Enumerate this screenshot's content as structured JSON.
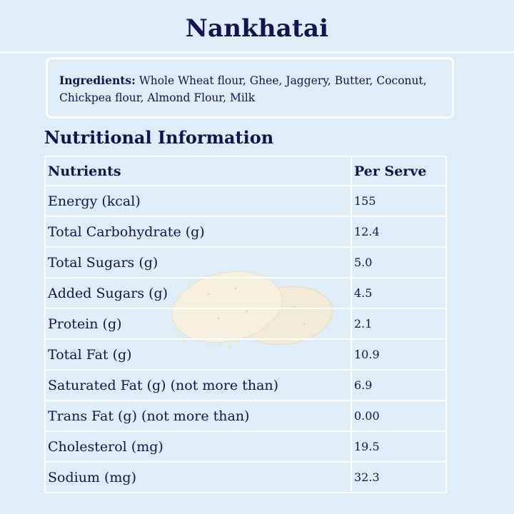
{
  "title": "Nankhatai",
  "ingredients": {
    "label": "Ingredients:",
    "text": " Whole Wheat flour, Ghee, Jaggery, Butter, Coconut, Chickpea flour, Almond Flour, Milk"
  },
  "nutrition": {
    "heading": "Nutritional Information",
    "columns": [
      "Nutrients",
      "Per Serve"
    ],
    "rows": [
      {
        "name": "Energy (kcal)",
        "value": "155"
      },
      {
        "name": "Total Carbohydrate (g)",
        "value": "12.4"
      },
      {
        "name": "Total Sugars (g)",
        "value": "5.0"
      },
      {
        "name": "Added Sugars (g)",
        "value": "4.5"
      },
      {
        "name": "Protein (g)",
        "value": "2.1"
      },
      {
        "name": "Total Fat (g)",
        "value": "10.9"
      },
      {
        "name": "Saturated Fat (g) (not more than)",
        "value": "6.9"
      },
      {
        "name": "Trans Fat (g) (not more than)",
        "value": "0.00"
      },
      {
        "name": "Cholesterol (mg)",
        "value": "19.5"
      },
      {
        "name": "Sodium (mg)",
        "value": "32.3"
      }
    ]
  },
  "colors": {
    "background": "#deedf8",
    "text": "#14124f",
    "lines": "#ffffff"
  }
}
